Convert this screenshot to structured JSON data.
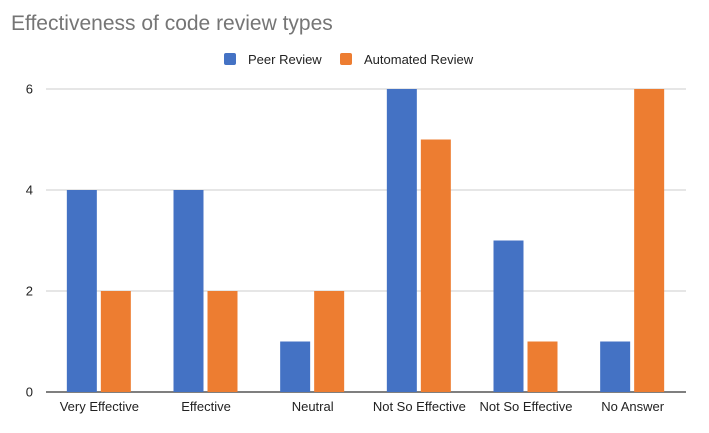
{
  "chart_data": {
    "type": "bar",
    "title": "Effectiveness of code review types",
    "categories": [
      "Very Effective",
      "Effective",
      "Neutral",
      "Not So Effective",
      "Not So Effective",
      "No Answer"
    ],
    "series": [
      {
        "name": "Peer Review",
        "color": "#4472c4",
        "values": [
          4,
          4,
          1,
          6,
          3,
          1
        ]
      },
      {
        "name": "Automated Review",
        "color": "#ed7d31",
        "values": [
          2,
          2,
          2,
          5,
          1,
          6
        ]
      }
    ],
    "ylim": [
      0,
      6
    ],
    "yticks": [
      0,
      2,
      4,
      6
    ],
    "xlabel": "",
    "ylabel": "",
    "grid": true,
    "legend": "top-center"
  }
}
